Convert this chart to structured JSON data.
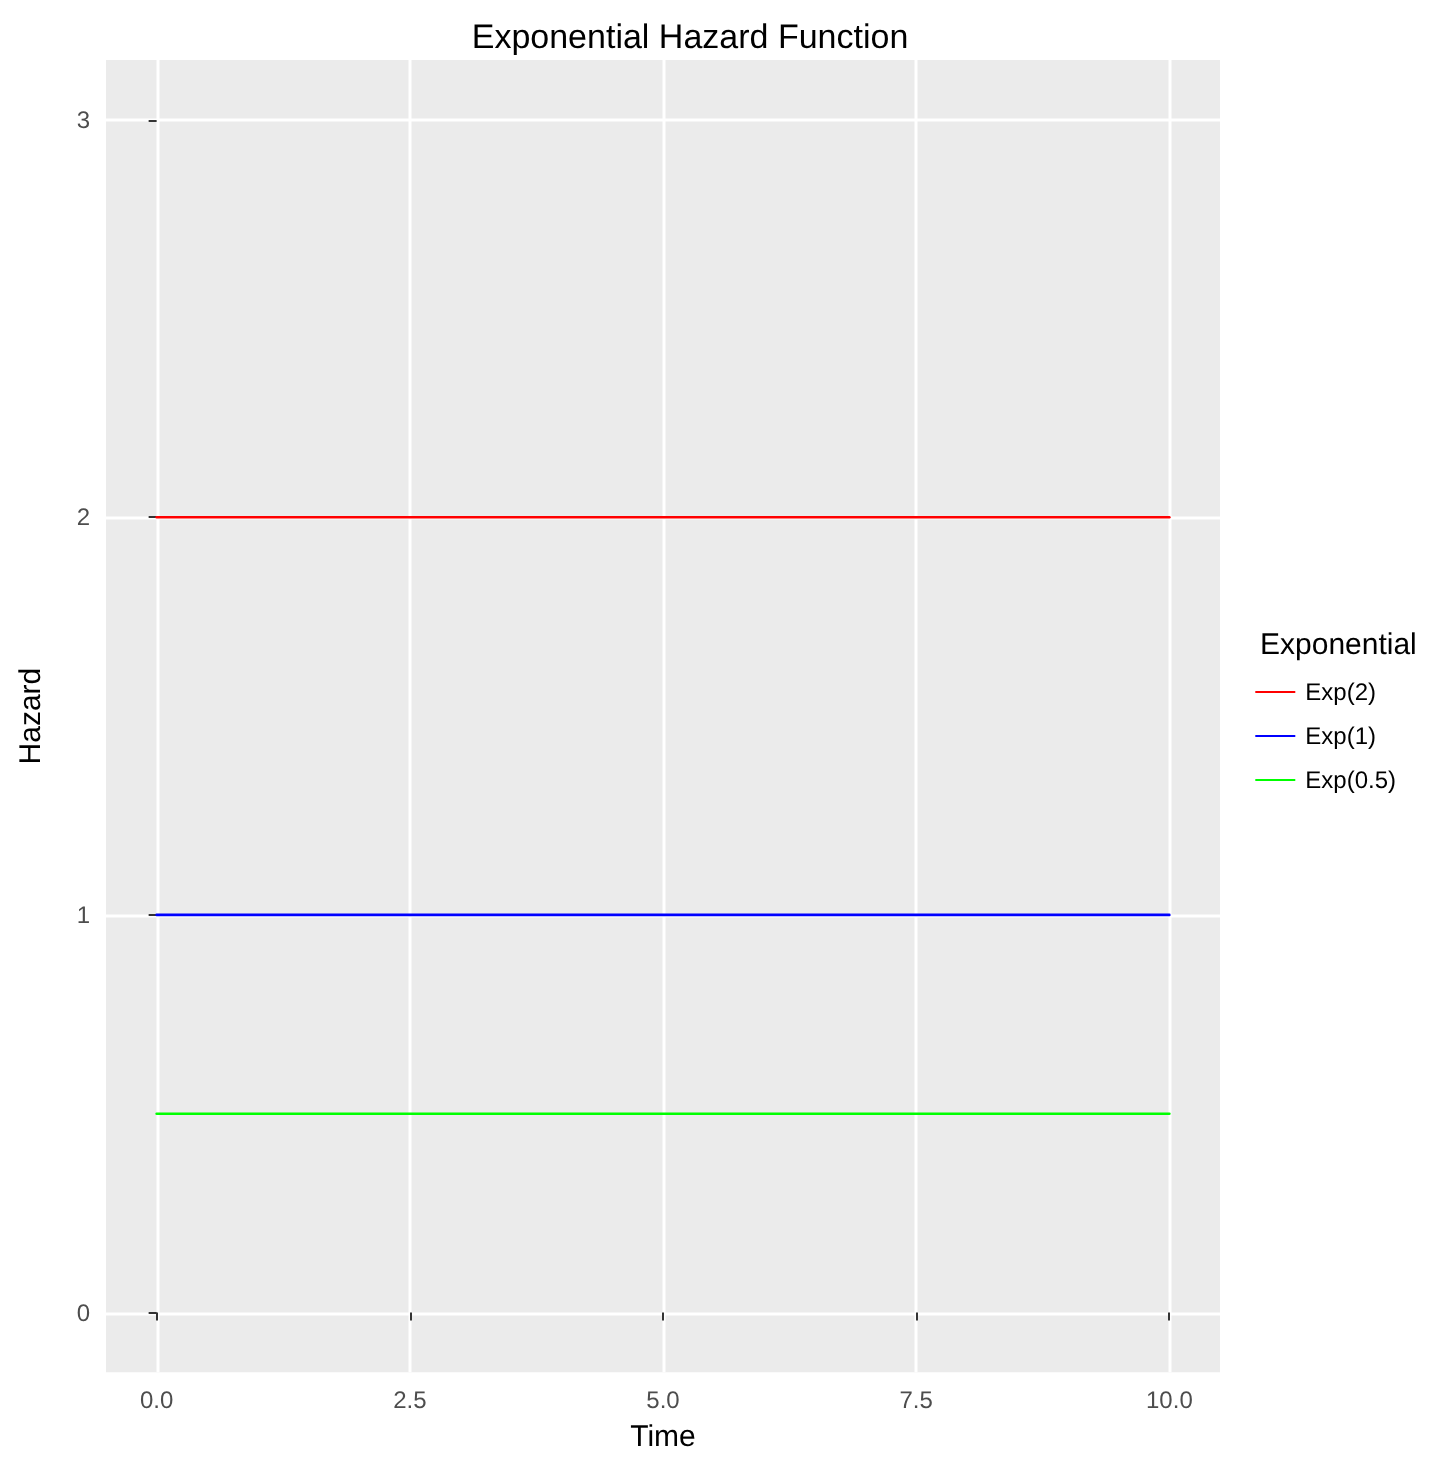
{
  "chart_data": {
    "type": "line",
    "title": "Exponential Hazard Function",
    "xlabel": "Time",
    "ylabel": "Hazard",
    "legend_title": "Exponential",
    "x": [
      0,
      10
    ],
    "series": [
      {
        "name": "Exp(2)",
        "color": "#ff0000",
        "values": [
          2,
          2
        ]
      },
      {
        "name": "Exp(1)",
        "color": "#0000ff",
        "values": [
          1,
          1
        ]
      },
      {
        "name": "Exp(0.5)",
        "color": "#00ff00",
        "values": [
          0.5,
          0.5
        ]
      }
    ],
    "xlim": [
      -0.5,
      10.5
    ],
    "xticks": [
      {
        "value": 0,
        "label": "0.0"
      },
      {
        "value": 2.5,
        "label": "2.5"
      },
      {
        "value": 5,
        "label": "5.0"
      },
      {
        "value": 7.5,
        "label": "7.5"
      },
      {
        "value": 10,
        "label": "10.0"
      }
    ],
    "ylim": [
      -0.15,
      3.15
    ],
    "yticks": [
      0,
      1,
      2,
      3
    ],
    "grid": true,
    "legend": "right",
    "marker": "none",
    "line_style": "solid"
  }
}
